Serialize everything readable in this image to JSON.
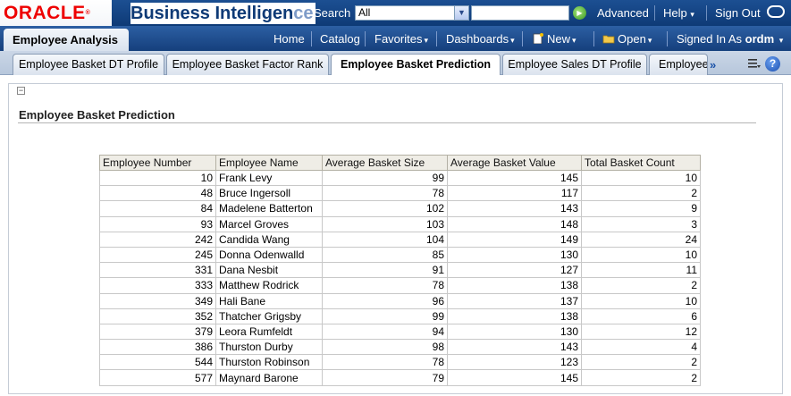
{
  "header": {
    "logo": "ORACLE",
    "product_main": "Business Intelligen",
    "product_fade": "ce",
    "search_label": "Search",
    "search_scope": "All",
    "search_value": "",
    "links": [
      "Advanced",
      "Help",
      "Sign Out"
    ]
  },
  "menubar": {
    "dashboard_tab": "Employee Analysis",
    "home": "Home",
    "catalog": "Catalog",
    "favorites": "Favorites",
    "dashboards": "Dashboards",
    "new": "New",
    "open": "Open",
    "signed_in_label": "Signed In As",
    "user": "ordm"
  },
  "tabs": [
    {
      "label": "Employee Basket DT Profile",
      "active": false
    },
    {
      "label": "Employee Basket Factor Rank",
      "active": false
    },
    {
      "label": "Employee Basket Prediction",
      "active": true
    },
    {
      "label": "Employee Sales DT Profile",
      "active": false
    },
    {
      "label": "Employee",
      "active": false
    }
  ],
  "tab_more": "»",
  "section": {
    "title": "Employee Basket Prediction",
    "collapse_glyph": "−"
  },
  "table": {
    "columns": [
      "Employee Number",
      "Employee Name",
      "Average Basket Size",
      "Average Basket Value",
      "Total Basket Count"
    ],
    "rows": [
      [
        "10",
        "Frank Levy",
        "99",
        "145",
        "10"
      ],
      [
        "48",
        "Bruce Ingersoll",
        "78",
        "117",
        "2"
      ],
      [
        "84",
        "Madelene Batterton",
        "102",
        "143",
        "9"
      ],
      [
        "93",
        "Marcel Groves",
        "103",
        "148",
        "3"
      ],
      [
        "242",
        "Candida Wang",
        "104",
        "149",
        "24"
      ],
      [
        "245",
        "Donna Odenwalld",
        "85",
        "130",
        "10"
      ],
      [
        "331",
        "Dana Nesbit",
        "91",
        "127",
        "11"
      ],
      [
        "333",
        "Matthew Rodrick",
        "78",
        "138",
        "2"
      ],
      [
        "349",
        "Hali Bane",
        "96",
        "137",
        "10"
      ],
      [
        "352",
        "Thatcher Grigsby",
        "99",
        "138",
        "6"
      ],
      [
        "379",
        "Leora Rumfeldt",
        "94",
        "130",
        "12"
      ],
      [
        "386",
        "Thurston Durby",
        "98",
        "143",
        "4"
      ],
      [
        "544",
        "Thurston Robinson",
        "78",
        "123",
        "2"
      ],
      [
        "577",
        "Maynard Barone",
        "79",
        "145",
        "2"
      ]
    ]
  },
  "icons": {
    "go": "go-arrow-icon",
    "help": "help-icon",
    "new": "new-document-icon",
    "open": "folder-icon",
    "page_options": "page-options-icon",
    "oracle_ring": "oracle-ring-icon"
  },
  "colors": {
    "navy": "#0e3a76",
    "oracle_red": "#ee0000",
    "header_cell": "#efede6"
  }
}
